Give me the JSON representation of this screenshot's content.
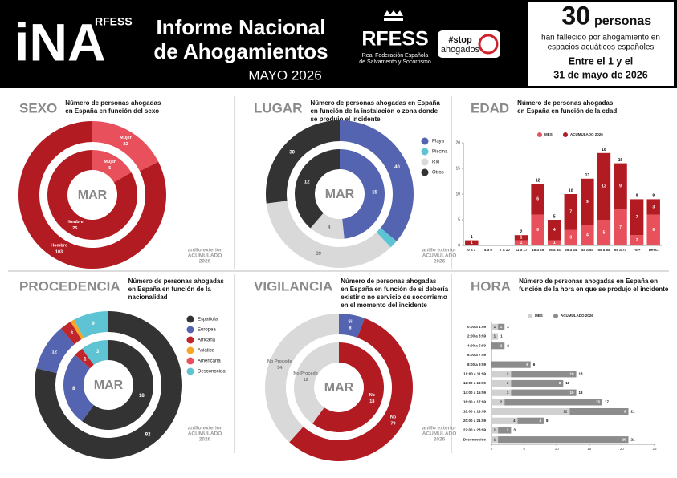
{
  "header": {
    "logo": "iNA",
    "logo_sub": "RFESS",
    "title": [
      "Informe Nacional",
      "de Ahogamientos"
    ],
    "subtitle": "MAYO 2026",
    "org": "RFESS",
    "org_name": [
      "Real Federación Española",
      "de Salvamento y Socorrismo"
    ],
    "campaign": [
      "#stop",
      "ahogados"
    ],
    "summary": {
      "count": 30,
      "count_unit": "personas",
      "lines": [
        "han fallecido por ahogamiento en",
        "espacios acuáticos españoles"
      ],
      "period": [
        "Entre el 1 y el",
        "31 de mayo de 2026"
      ]
    }
  },
  "chart_data": [
    {
      "type": "pie",
      "heading": "SEXO",
      "title": [
        "Número de personas ahogadas",
        "en España en función del sexo"
      ],
      "center_label": "MAR",
      "note": [
        "anillo exterior",
        "ACUMULADO",
        "2026"
      ],
      "label_names": true,
      "legend": false,
      "categories": [
        "Mujer",
        "Hombre"
      ],
      "colors": [
        "#e8505b",
        "#b31b22"
      ],
      "series": [
        {
          "values": [
            22,
            103
          ]
        },
        {
          "values": [
            5,
            25
          ]
        }
      ]
    },
    {
      "type": "pie",
      "heading": "LUGAR",
      "title": [
        "Número de personas ahogadas en España",
        "en función de la instalación o zona donde",
        "se produjo el incidente"
      ],
      "center_label": "MAR",
      "note": [
        "anillo exterior",
        "ACUMULADO",
        "2026"
      ],
      "label_names": false,
      "legend": true,
      "categories": [
        "Playa",
        "Piscina",
        "Río",
        "Otros"
      ],
      "colors": [
        "#5464b0",
        "#5ec4d3",
        "#d9d9d9",
        "#333333"
      ],
      "series": [
        {
          "values": [
            40,
            2,
            39,
            30
          ]
        },
        {
          "values": [
            15,
            0,
            4,
            12
          ]
        }
      ]
    },
    {
      "type": "bar",
      "heading": "EDAD",
      "title": [
        "Número de personas ahogadas",
        "en España en función de la edad"
      ],
      "categories": [
        "0 a 3",
        "4 a 6",
        "7 a 10",
        "11 a 17",
        "18 a 25",
        "26 a 34",
        "35 a 44",
        "45 a 54",
        "55 a 64",
        "65 a 74",
        "75 +",
        "Desc."
      ],
      "series": [
        {
          "name": "MES",
          "color": "#e8505b",
          "values": [
            0,
            0,
            0,
            1,
            6,
            1,
            3,
            4,
            5,
            7,
            2,
            6
          ]
        },
        {
          "name": "ACUMULADO 2026",
          "color": "#b31b22",
          "values": [
            1,
            0,
            0,
            1,
            6,
            4,
            7,
            9,
            13,
            9,
            7,
            3
          ]
        }
      ],
      "total_labels": [
        "1",
        null,
        null,
        "2",
        "12",
        "5",
        "10",
        "13",
        "18",
        "16",
        "9",
        "9"
      ],
      "ylim": [
        0,
        20
      ],
      "yticks": [
        0,
        5,
        10,
        15,
        20
      ]
    },
    {
      "type": "pie",
      "heading": "PROCEDENCIA",
      "title": [
        "Número de personas ahogadas",
        "en España en función de la",
        "nacionalidad"
      ],
      "center_label": "MAR",
      "note": [
        "anillo exterior",
        "ACUMULADO",
        "2026"
      ],
      "label_names": false,
      "legend": true,
      "categories": [
        "Española",
        "Europea",
        "Africana",
        "Asiática",
        "Americana",
        "Desconocida"
      ],
      "colors": [
        "#333333",
        "#5464b0",
        "#c0272d",
        "#f5a623",
        "#e8505b",
        "#5ec4d3"
      ],
      "series": [
        {
          "values": [
            92,
            12,
            3,
            1,
            0,
            9
          ]
        },
        {
          "values": [
            18,
            8,
            1,
            0,
            0,
            3
          ]
        }
      ]
    },
    {
      "type": "pie",
      "heading": "VIGILANCIA",
      "title": [
        "Número de personas ahogadas",
        "en España en función de si debería",
        "existir o no servicio de socorrismo",
        "en el momento del incidente"
      ],
      "center_label": "MAR",
      "note": [
        "anillo exterior",
        "ACUMULADO",
        "2026"
      ],
      "label_names": true,
      "legend": false,
      "categories": [
        "Si",
        "No",
        "No Procede"
      ],
      "colors": [
        "#5464b0",
        "#b31b22",
        "#d9d9d9"
      ],
      "series": [
        {
          "values": [
            8,
            79,
            54
          ]
        },
        {
          "values": [
            0,
            18,
            12
          ]
        }
      ]
    },
    {
      "type": "barh",
      "heading": "HORA",
      "title": [
        "Número de personas ahogadas en España en",
        "función de la hora en que se produjo el incidente"
      ],
      "categories": [
        "0:00 a 1:59",
        "2:00 a 3:59",
        "4:00 a 5:59",
        "6:00 a 7:59",
        "8:00 a 9:59",
        "10:00 a 11:59",
        "12:00 a 13:59",
        "14:00 a 15:59",
        "16:00 a 17:59",
        "18:00 a 19:59",
        "20:00 a 21:59",
        "22:00 a 23:59",
        "Desconocido"
      ],
      "series": [
        {
          "name": "MES",
          "color": "#d0d0d0",
          "values": [
            1,
            1,
            0,
            0,
            0,
            3,
            3,
            3,
            2,
            12,
            4,
            1,
            1
          ]
        },
        {
          "name": "ACUMULADO 2026",
          "color": "#8c8c8c",
          "values": [
            1,
            0,
            2,
            0,
            6,
            10,
            8,
            10,
            15,
            9,
            4,
            2,
            20
          ]
        }
      ],
      "total_labels": [
        "2",
        "1",
        "2",
        null,
        "6",
        "13",
        "11",
        "13",
        "17",
        "21",
        "8",
        "3",
        "21"
      ],
      "xlim": [
        0,
        25
      ],
      "xticks": [
        0,
        5,
        10,
        15,
        20,
        25
      ]
    }
  ]
}
